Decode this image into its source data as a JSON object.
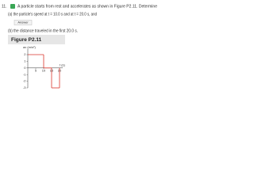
{
  "problem": {
    "number": "11.",
    "intro": "A particle starts from rest and accelerates as shown in Figure P2.11. Determine",
    "part_a": "(a) the particle's speed at t = 10.0 s and at t = 20.0 s, and",
    "answer_button": "Answer",
    "part_b": "(b) the distance traveled in the first 20.0 s."
  },
  "figure": {
    "title": "Figure P2.11",
    "y_label": "ax (m/s²)",
    "x_label": "t (s)",
    "yticks": [
      2,
      1,
      0,
      -1,
      -2,
      -3
    ],
    "xticks": [
      5,
      10,
      15,
      20
    ],
    "ylim": [
      -3,
      2.6
    ],
    "xlim": [
      0,
      22
    ],
    "color": "#d9342b",
    "segments": [
      {
        "t": [
          0,
          10
        ],
        "a": 2
      },
      {
        "t": [
          10,
          15
        ],
        "a": 0
      },
      {
        "t": [
          15,
          20
        ],
        "a": -3
      }
    ]
  }
}
